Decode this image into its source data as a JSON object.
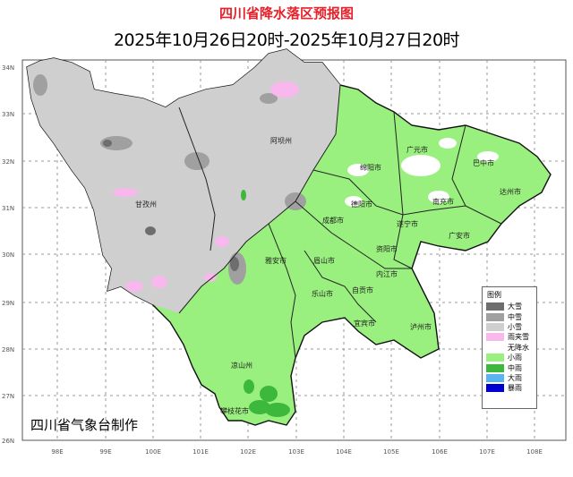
{
  "title": "四川省降水落区预报图",
  "subtitle": "2025年10月26日20时-2025年10月27日20时",
  "credit": "四川省气象台制作",
  "lat_labels": [
    "34N",
    "33N",
    "32N",
    "31N",
    "30N",
    "29N",
    "28N",
    "27N",
    "26N"
  ],
  "lon_labels": [
    "98E",
    "99E",
    "100E",
    "101E",
    "102E",
    "103E",
    "104E",
    "105E",
    "106E",
    "107E",
    "108E"
  ],
  "cities": [
    {
      "name": "阿坝州"
    },
    {
      "name": "甘孜州"
    },
    {
      "name": "广元市"
    },
    {
      "name": "巴中市"
    },
    {
      "name": "绵阳市"
    },
    {
      "name": "达州市"
    },
    {
      "name": "德阳市"
    },
    {
      "name": "南充市"
    },
    {
      "name": "成都市"
    },
    {
      "name": "遂宁市"
    },
    {
      "name": "广安市"
    },
    {
      "name": "资阳市"
    },
    {
      "name": "雅安市"
    },
    {
      "name": "眉山市"
    },
    {
      "name": "内江市"
    },
    {
      "name": "乐山市"
    },
    {
      "name": "自贡市"
    },
    {
      "name": "宜宾市"
    },
    {
      "name": "泸州市"
    },
    {
      "name": "凉山州"
    },
    {
      "name": "攀枝花市"
    }
  ],
  "legend": {
    "title": "图例",
    "items": [
      {
        "label": "大雪",
        "color": "#6e6e6e"
      },
      {
        "label": "中雪",
        "color": "#a0a0a0"
      },
      {
        "label": "小雪",
        "color": "#cfcfcf"
      },
      {
        "label": "雨夹雪",
        "color": "#f8b8ee"
      },
      {
        "label": "无降水",
        "color": "#ffffff"
      },
      {
        "label": "小雨",
        "color": "#99f07e"
      },
      {
        "label": "中雨",
        "color": "#3cb83c"
      },
      {
        "label": "大雨",
        "color": "#5ab4f0"
      },
      {
        "label": "暴雨",
        "color": "#0000d0"
      }
    ]
  }
}
